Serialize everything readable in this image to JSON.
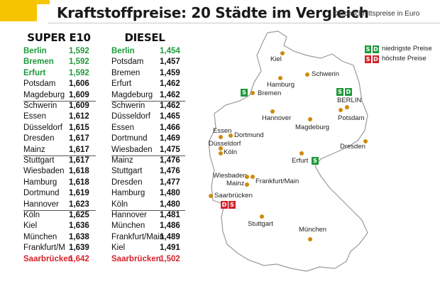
{
  "header": {
    "title": "Kraftstoffpreise: 20 Städte im Vergleich",
    "subtitle": "Durchschnittspreise in Euro"
  },
  "colors": {
    "low": "#1e9a3a",
    "high": "#d3232a",
    "city_dot": "#cf8a0c",
    "accent": "#f6c400"
  },
  "super_e10": {
    "heading": "SUPER E10",
    "rows": [
      {
        "city": "Berlin",
        "price": "1,592",
        "status": "low"
      },
      {
        "city": "Bremen",
        "price": "1,592",
        "status": "low"
      },
      {
        "city": "Erfurt",
        "price": "1,592",
        "status": "low"
      },
      {
        "city": "Potsdam",
        "price": "1,606",
        "status": ""
      },
      {
        "city": "Magdeburg",
        "price": "1,609",
        "status": ""
      },
      {
        "city": "Schwerin",
        "price": "1,609",
        "status": ""
      },
      {
        "city": "Essen",
        "price": "1,612",
        "status": ""
      },
      {
        "city": "Düsseldorf",
        "price": "1,615",
        "status": ""
      },
      {
        "city": "Dresden",
        "price": "1,617",
        "status": ""
      },
      {
        "city": "Mainz",
        "price": "1,617",
        "status": ""
      },
      {
        "city": "Stuttgart",
        "price": "1,617",
        "status": ""
      },
      {
        "city": "Wiesbaden",
        "price": "1,618",
        "status": ""
      },
      {
        "city": "Hamburg",
        "price": "1,618",
        "status": ""
      },
      {
        "city": "Dortmund",
        "price": "1,619",
        "status": ""
      },
      {
        "city": "Hannover",
        "price": "1,623",
        "status": ""
      },
      {
        "city": "Köln",
        "price": "1,625",
        "status": ""
      },
      {
        "city": "Kiel",
        "price": "1,636",
        "status": ""
      },
      {
        "city": "München",
        "price": "1,638",
        "status": ""
      },
      {
        "city": "Frankfurt/M",
        "price": "1,639",
        "status": ""
      },
      {
        "city": "Saarbrücken",
        "price": "1,642",
        "status": "high"
      }
    ]
  },
  "diesel": {
    "heading": "DIESEL",
    "rows": [
      {
        "city": "Berlin",
        "price": "1,454",
        "status": "low"
      },
      {
        "city": "Potsdam",
        "price": "1,457",
        "status": ""
      },
      {
        "city": "Bremen",
        "price": "1,459",
        "status": ""
      },
      {
        "city": "Erfurt",
        "price": "1,462",
        "status": ""
      },
      {
        "city": "Magdeburg",
        "price": "1,462",
        "status": ""
      },
      {
        "city": "Schwerin",
        "price": "1,462",
        "status": ""
      },
      {
        "city": "Düsseldorf",
        "price": "1,465",
        "status": ""
      },
      {
        "city": "Essen",
        "price": "1,466",
        "status": ""
      },
      {
        "city": "Dortmund",
        "price": "1,469",
        "status": ""
      },
      {
        "city": "Wiesbaden",
        "price": "1,475",
        "status": ""
      },
      {
        "city": "Mainz",
        "price": "1,476",
        "status": ""
      },
      {
        "city": "Stuttgart",
        "price": "1,476",
        "status": ""
      },
      {
        "city": "Dresden",
        "price": "1,477",
        "status": ""
      },
      {
        "city": "Hamburg",
        "price": "1,480",
        "status": ""
      },
      {
        "city": "Köln",
        "price": "1,480",
        "status": ""
      },
      {
        "city": "Hannover",
        "price": "1,481",
        "status": ""
      },
      {
        "city": "München",
        "price": "1,486",
        "status": ""
      },
      {
        "city": "Frankfurt/Main",
        "price": "1,489",
        "status": ""
      },
      {
        "city": "Kiel",
        "price": "1,491",
        "status": ""
      },
      {
        "city": "Saarbrücken",
        "price": "1,502",
        "status": "high"
      }
    ]
  },
  "map": {
    "legend": {
      "lowest_label": "niedrigste Preise",
      "highest_label": "höchste Preise",
      "badge_s": "S",
      "badge_d": "D"
    },
    "cities": {
      "kiel": "Kiel",
      "schwerin": "Schwerin",
      "hamburg": "Hamburg",
      "bremen": "Bremen",
      "berlin": "BERLIN",
      "potsdam": "Potsdam",
      "hannover": "Hannover",
      "magdeburg": "Magdeburg",
      "essen": "Essen",
      "dortmund": "Dortmund",
      "duesseldorf": "Düsseldorf",
      "koeln": "Köln",
      "dresden": "Dresden",
      "erfurt": "Erfurt",
      "wiesbaden": "Wiesbaden",
      "mainz": "Mainz",
      "frankfurt": "Frankfurt/Main",
      "saarbruecken": "Saarbrücken",
      "stuttgart": "Stuttgart",
      "muenchen": "München"
    }
  }
}
